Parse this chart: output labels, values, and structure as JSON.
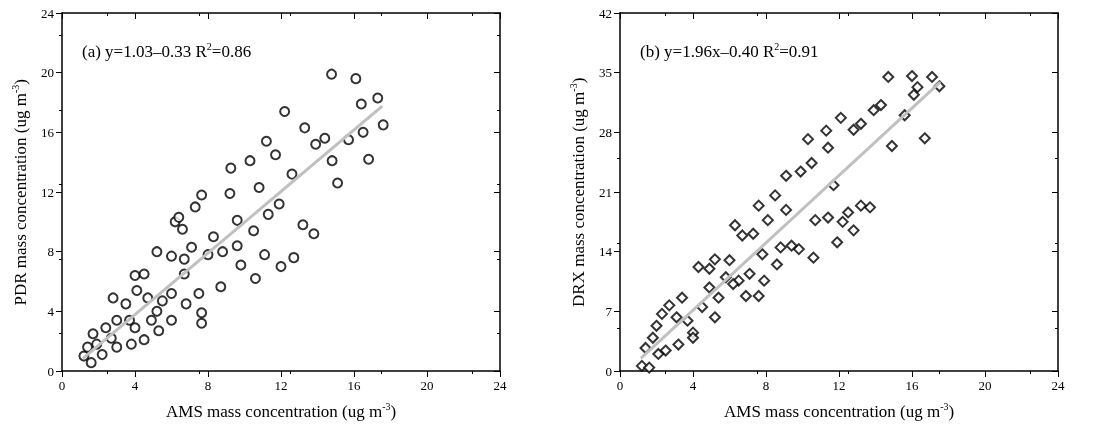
{
  "chart_data": [
    {
      "type": "scatter",
      "xlabel": "AMS mass concentration (ug m$^{-3}$)",
      "ylabel": "PDR mass concentration (ug m$^{-3}$)",
      "annotations": [
        "(a) y=1.03–0.33 R$^{2}$=0.86"
      ],
      "xlim": [
        0,
        24
      ],
      "xticks": [
        0,
        4,
        8,
        12,
        16,
        20,
        24
      ],
      "ylim": [
        0,
        24
      ],
      "yticks": [
        0,
        4,
        8,
        12,
        16,
        20,
        24
      ],
      "marker": "circle",
      "series": [
        {
          "color": "#000000",
          "x": [
            14.77,
            16.1,
            17.3,
            17.6,
            16.4,
            16.5,
            16.8,
            15.1,
            14.8,
            15.7,
            12.2,
            13.3,
            14.4,
            13.9,
            11.2,
            11.7,
            10.3,
            9.25,
            12.6,
            11.9,
            13.8,
            13.2,
            12.7,
            12.0,
            10.6,
            9.8,
            7.65,
            7.65,
            8.7,
            7.3,
            7.65,
            9.2,
            6.2,
            6.4,
            6.6,
            5.2,
            4.0,
            4.5,
            6.0,
            6.7,
            7.1,
            8.0,
            8.3,
            8.8,
            9.6,
            11.1,
            10.5,
            11.3,
            9.6,
            10.8,
            6.0,
            6.8,
            6.0,
            5.3,
            4.5,
            3.8,
            3.0,
            2.2,
            1.6,
            1.2,
            1.9,
            2.4,
            2.8,
            3.5,
            4.1,
            4.7,
            3.0,
            3.7,
            5.2,
            1.4,
            2.7,
            1.7,
            4.0,
            4.9,
            5.5,
            6.7,
            7.5
          ],
          "values": [
            19.9,
            19.6,
            18.3,
            16.5,
            17.9,
            16.0,
            14.2,
            12.6,
            14.1,
            15.5,
            17.4,
            16.3,
            15.6,
            15.2,
            15.4,
            14.5,
            14.1,
            13.6,
            13.2,
            11.2,
            9.2,
            9.8,
            7.6,
            7.0,
            6.2,
            7.1,
            3.2,
            3.9,
            5.65,
            11.0,
            11.8,
            11.9,
            10.0,
            10.3,
            9.5,
            8.0,
            6.4,
            6.5,
            7.7,
            7.5,
            8.3,
            7.8,
            9.0,
            8.0,
            8.4,
            7.8,
            9.4,
            10.5,
            10.1,
            12.3,
            5.2,
            4.5,
            3.4,
            2.7,
            2.1,
            1.8,
            1.6,
            1.1,
            0.56,
            1.0,
            1.8,
            2.9,
            4.9,
            4.5,
            5.4,
            4.9,
            3.4,
            3.4,
            4.0,
            1.6,
            2.2,
            2.5,
            2.9,
            3.4,
            4.7,
            6.5,
            5.2
          ]
        },
        {
          "type": "line",
          "color": "#c0c0c0",
          "marker": "none",
          "x": [
            1.2,
            17.5
          ],
          "values": [
            0.9,
            17.7
          ]
        }
      ]
    },
    {
      "type": "scatter",
      "xlabel": "AMS mass concentration (ug m$^{-3}$)",
      "ylabel": "DRX mass concentration (ug m$^{-3}$)",
      "annotations": [
        "(b) y=1.96x–0.40 R$^{2}$=0.91"
      ],
      "xlim": [
        0,
        24
      ],
      "xticks": [
        0,
        4,
        8,
        12,
        16,
        20,
        24
      ],
      "ylim": [
        0,
        42
      ],
      "yticks": [
        0,
        7,
        14,
        21,
        28,
        35,
        42
      ],
      "marker": "diamond",
      "series": [
        {
          "color": "#000000",
          "x": [
            14.7,
            16.0,
            17.1,
            16.3,
            17.5,
            16.1,
            16.7,
            14.9,
            15.6,
            14.3,
            13.9,
            12.1,
            13.2,
            12.8,
            11.3,
            10.3,
            10.5,
            11.4,
            11.7,
            9.9,
            9.1,
            8.5,
            7.6,
            6.3,
            6.7,
            7.8,
            8.6,
            7.6,
            6.9,
            5.2,
            4.0,
            4.3,
            4.9,
            5.2,
            6.0,
            13.7,
            13.2,
            12.5,
            12.8,
            11.9,
            10.6,
            9.8,
            9.4,
            8.8,
            10.7,
            11.4,
            12.2,
            9.1,
            8.1,
            7.3,
            5.8,
            6.5,
            3.4,
            2.7,
            2.3,
            2.0,
            1.8,
            1.4,
            1.2,
            1.6,
            2.5,
            3.2,
            4.0,
            3.7,
            4.5,
            5.4,
            4.9,
            6.2,
            7.1,
            7.9,
            3.1,
            2.1
          ],
          "values": [
            34.5,
            34.6,
            34.5,
            33.3,
            33.4,
            32.4,
            27.3,
            26.4,
            30.0,
            31.2,
            30.6,
            29.7,
            29.0,
            28.3,
            28.2,
            27.2,
            24.4,
            26.2,
            21.8,
            23.4,
            22.9,
            20.6,
            19.4,
            17.1,
            15.9,
            13.7,
            12.5,
            8.8,
            8.8,
            6.3,
            4.5,
            12.2,
            12.0,
            13.1,
            13.0,
            19.2,
            19.4,
            18.6,
            16.5,
            15.1,
            13.3,
            14.3,
            14.7,
            14.5,
            17.7,
            18.0,
            17.5,
            18.9,
            17.7,
            16.1,
            11.0,
            10.6,
            8.6,
            7.7,
            6.7,
            5.3,
            3.9,
            2.7,
            0.6,
            0.4,
            2.4,
            3.1,
            3.9,
            5.9,
            7.5,
            8.6,
            9.8,
            10.2,
            11.4,
            10.6,
            6.3,
            2.0
          ]
        },
        {
          "type": "line",
          "color": "#c0c0c0",
          "marker": "none",
          "x": [
            1.2,
            17.5
          ],
          "values": [
            1.6,
            33.8
          ]
        }
      ]
    }
  ]
}
